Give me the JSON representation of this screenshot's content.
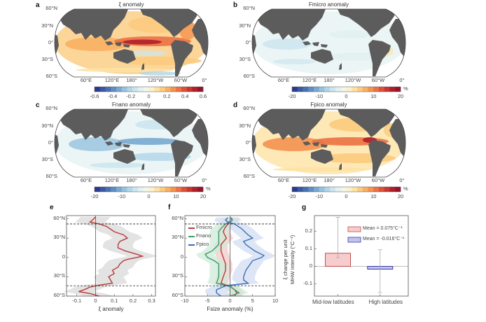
{
  "chart_data": [
    {
      "panel": "a",
      "type": "heatmap",
      "title": "ξ anomaly",
      "lat_ticks": [
        "60°N",
        "30°N",
        "0°",
        "30°S",
        "60°S"
      ],
      "lon_ticks": [
        "60°E",
        "120°E",
        "180°",
        "120°W",
        "60°W",
        "0°"
      ],
      "colorbar": {
        "ticks": [
          "-0.6",
          "-0.4",
          "-0.2",
          "0",
          "0.2",
          "0.4",
          "0.6"
        ],
        "unit": "",
        "range": [
          -0.6,
          0.6
        ]
      }
    },
    {
      "panel": "b",
      "type": "heatmap",
      "title": "Fmicro anomaly",
      "lat_ticks": [
        "60°N",
        "30°N",
        "0°",
        "30°S",
        "60°S"
      ],
      "lon_ticks": [
        "60°E",
        "120°E",
        "180°",
        "120°W",
        "60°W",
        "0°"
      ],
      "colorbar": {
        "ticks": [
          "-20",
          "-10",
          "0",
          "10",
          "20"
        ],
        "unit": "%",
        "range": [
          -20,
          20
        ]
      }
    },
    {
      "panel": "c",
      "type": "heatmap",
      "title": "Fnano anomaly",
      "lat_ticks": [
        "60°N",
        "30°N",
        "0°",
        "30°S",
        "60°S"
      ],
      "lon_ticks": [
        "60°E",
        "120°E",
        "180°",
        "120°W",
        "60°W",
        "0°"
      ],
      "colorbar": {
        "ticks": [
          "-20",
          "-10",
          "0",
          "10",
          "20"
        ],
        "unit": "%",
        "range": [
          -20,
          20
        ]
      }
    },
    {
      "panel": "d",
      "type": "heatmap",
      "title": "Fpico anomaly",
      "lat_ticks": [
        "60°N",
        "30°N",
        "0°",
        "30°S",
        "60°S"
      ],
      "lon_ticks": [
        "60°E",
        "120°E",
        "180°",
        "120°W",
        "60°W",
        "0°"
      ],
      "colorbar": {
        "ticks": [
          "-20",
          "-10",
          "0",
          "10",
          "20"
        ],
        "unit": "%",
        "range": [
          -20,
          20
        ]
      }
    },
    {
      "panel": "e",
      "type": "line",
      "xlabel": "ξ anomaly",
      "xlim": [
        -0.155,
        0.32
      ],
      "ylim": [
        -60,
        65
      ],
      "xticks": [
        {
          "v": -0.1,
          "label": "-0.1"
        },
        {
          "v": 0,
          "label": "0"
        },
        {
          "v": 0.1,
          "label": "0.1"
        },
        {
          "v": 0.2,
          "label": "0.2"
        },
        {
          "v": 0.3,
          "label": "0.3"
        }
      ],
      "yticks": [
        {
          "v": 60,
          "label": "60°N"
        },
        {
          "v": 30,
          "label": "30°N"
        },
        {
          "v": 0,
          "label": "0"
        },
        {
          "v": -30,
          "label": "30°S"
        },
        {
          "v": -60,
          "label": "60°S"
        }
      ],
      "dashed_lat": [
        52,
        -44
      ],
      "series": [
        {
          "name": "ξ",
          "color": "#b83a3a",
          "band_color": "#d9d9d9",
          "spread": 0.08,
          "lat": [
            63,
            60,
            57,
            55,
            52,
            48,
            40,
            35,
            30,
            25,
            20,
            15,
            10,
            5,
            2,
            0,
            -3,
            -5,
            -10,
            -15,
            -20,
            -25,
            -30,
            -35,
            -40,
            -43,
            -46,
            -50,
            -53,
            -56,
            -60
          ],
          "value": [
            0,
            -0.01,
            -0.02,
            -0.03,
            0.02,
            0.06,
            0.1,
            0.15,
            0.17,
            0.13,
            0.12,
            0.12,
            0.16,
            0.22,
            0.25,
            0.22,
            0.17,
            0.15,
            0.13,
            0.12,
            0.09,
            0.1,
            0.07,
            0.08,
            0.09,
            0.02,
            -0.03,
            -0.06,
            -0.09,
            -0.03,
            0.02
          ]
        }
      ]
    },
    {
      "panel": "f",
      "type": "line",
      "xlabel": "Fsize anomaly (%)",
      "xlim": [
        -10,
        10
      ],
      "ylim": [
        -60,
        65
      ],
      "xticks": [
        {
          "v": -10,
          "label": "-10"
        },
        {
          "v": -5,
          "label": "-5"
        },
        {
          "v": 0,
          "label": "0"
        },
        {
          "v": 5,
          "label": "5"
        },
        {
          "v": 10,
          "label": "10"
        }
      ],
      "yticks": [
        {
          "v": 60,
          "label": "60°N"
        },
        {
          "v": 30,
          "label": "30°N"
        },
        {
          "v": 0,
          "label": "0"
        },
        {
          "v": -30,
          "label": "30°S"
        },
        {
          "v": -60,
          "label": "60°S"
        }
      ],
      "dashed_lat": [
        52,
        -44
      ],
      "legend": "top-left",
      "series": [
        {
          "name": "Fmicro",
          "color": "#b83a3a",
          "band_color": "#f3c9c9",
          "spread": 1.5,
          "lat": [
            62,
            58,
            52,
            45,
            40,
            35,
            30,
            20,
            10,
            0,
            -10,
            -20,
            -30,
            -40,
            -45,
            -50,
            -55,
            -60
          ],
          "value": [
            0.3,
            0.5,
            -0.5,
            -1.2,
            -1.5,
            -1.2,
            -0.8,
            -2.0,
            -2.0,
            -1.5,
            -1.0,
            -1.0,
            -1.5,
            -2.0,
            0,
            1.0,
            1.5,
            1.0
          ]
        },
        {
          "name": "Fnano",
          "color": "#3e9a6d",
          "band_color": "#cdebd8",
          "spread": 2.0,
          "lat": [
            62,
            58,
            52,
            45,
            40,
            30,
            20,
            10,
            5,
            0,
            -5,
            -10,
            -20,
            -30,
            -40,
            -45,
            -50,
            -55,
            -60
          ],
          "value": [
            0,
            0.5,
            -1.0,
            -2.0,
            -2.5,
            -2.5,
            -2.5,
            -4.0,
            -5.5,
            -5.0,
            -3.5,
            -2.5,
            -2.5,
            -2.5,
            -3.0,
            0,
            1.0,
            2.0,
            0
          ]
        },
        {
          "name": "Fpico",
          "color": "#3a6fb5",
          "band_color": "#d3def3",
          "spread": 2.5,
          "lat": [
            62,
            58,
            55,
            52,
            45,
            35,
            30,
            25,
            20,
            10,
            3,
            0,
            -5,
            -10,
            -20,
            -30,
            -35,
            -40,
            -44,
            -50,
            -55,
            -60
          ],
          "value": [
            -0.5,
            -1.0,
            -0.5,
            1.0,
            2.5,
            4.0,
            5.0,
            3.0,
            3.5,
            5.5,
            7.5,
            7.0,
            5.0,
            4.5,
            3.5,
            3.0,
            3.0,
            4.0,
            -1.0,
            -3.0,
            -3.0,
            -2.0
          ]
        }
      ]
    },
    {
      "panel": "g",
      "type": "bar",
      "ylabel_line1": "ξ change per unit",
      "ylabel_line2": "MHW intensity (°C⁻¹)",
      "ylim": [
        -0.17,
        0.29
      ],
      "yticks": [
        {
          "v": 0.2,
          "label": "0.2"
        },
        {
          "v": 0.1,
          "label": "0.1"
        },
        {
          "v": 0,
          "label": "0"
        },
        {
          "v": -0.1,
          "label": "-0.1"
        }
      ],
      "categories": [
        "Mid-low latitudes",
        "High latitudes"
      ],
      "values": [
        0.075,
        -0.016
      ],
      "error_low": [
        0.05,
        -0.15
      ],
      "error_high": [
        0.28,
        0.095
      ],
      "fill_colors": [
        "#f6cccc",
        "#c3c3f0"
      ],
      "edge_colors": [
        "#c05050",
        "#3a3aa8"
      ],
      "legend": [
        "Mean = 0.075°C⁻¹",
        "Mean = -0.016°C⁻¹"
      ],
      "legend_placement": "top-right"
    }
  ]
}
